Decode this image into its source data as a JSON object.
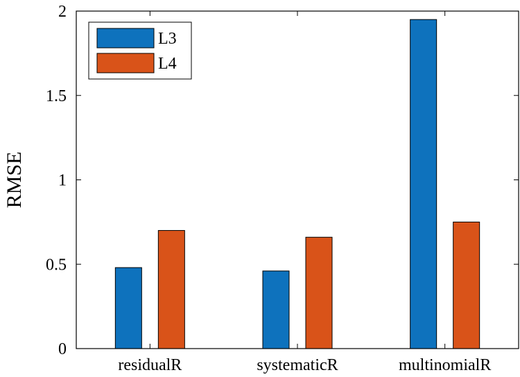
{
  "colors": {
    "L3": "#0e72bd",
    "L4": "#d95319",
    "axis": "#000000",
    "background": "#ffffff"
  },
  "chart_data": {
    "type": "bar",
    "categories": [
      "residualR",
      "systematicR",
      "multinomialR"
    ],
    "series": [
      {
        "name": "L3",
        "values": [
          0.48,
          0.46,
          1.95
        ]
      },
      {
        "name": "L4",
        "values": [
          0.7,
          0.66,
          0.75
        ]
      }
    ],
    "xlabel": "",
    "ylabel": "RMSE",
    "ylim": [
      0,
      2
    ],
    "yticks": [
      0,
      0.5,
      1,
      1.5,
      2
    ],
    "ytick_labels": [
      "0",
      "0.5",
      "1",
      "1.5",
      "2"
    ],
    "grid": false,
    "legend_placement": "top-left",
    "box": true
  }
}
